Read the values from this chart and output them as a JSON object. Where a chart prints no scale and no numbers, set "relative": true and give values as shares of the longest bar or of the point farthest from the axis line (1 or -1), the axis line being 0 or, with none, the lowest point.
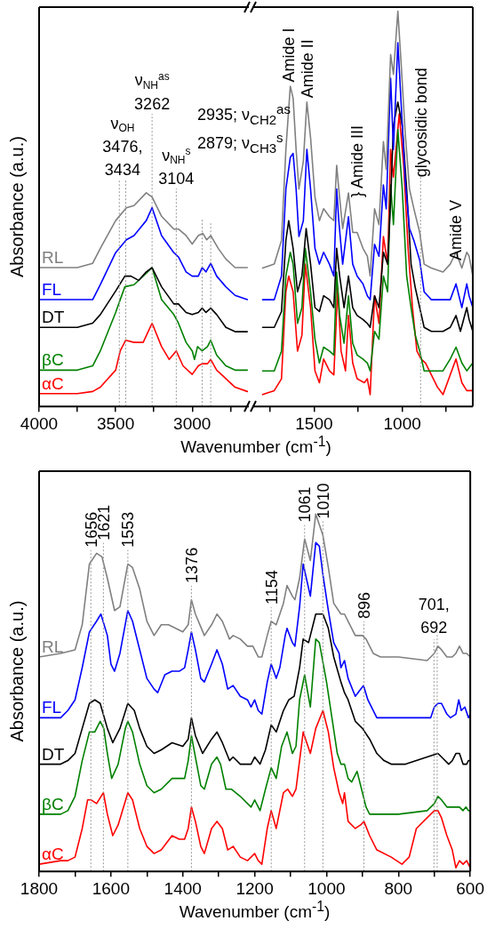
{
  "chart_data": [
    {
      "type": "line",
      "relative": true,
      "ylabel": "Absorbance (a.u.)",
      "xlim": [
        4000,
        2630
      ],
      "xticks": [
        4000,
        {
          "value": 3750,
          "label": null
        },
        3500,
        {
          "value": 3250,
          "label": null
        },
        3000,
        {
          "value": 2750,
          "label": null
        }
      ],
      "series": [
        {
          "name": "RL",
          "color": "#808080",
          "x": [
            4000,
            3750,
            3650,
            3600,
            3500,
            3430,
            3380,
            3300,
            3262,
            3200,
            3120,
            3090,
            3040,
            3000,
            2960,
            2930,
            2905,
            2879,
            2830,
            2780,
            2720,
            2640
          ],
          "values": [
            0.65,
            0.65,
            0.67,
            0.74,
            0.87,
            0.93,
            0.94,
            1.0,
            0.98,
            0.89,
            0.83,
            0.83,
            0.8,
            0.76,
            0.8,
            0.81,
            0.78,
            0.8,
            0.74,
            0.69,
            0.65,
            0.65
          ]
        },
        {
          "name": "FL",
          "color": "#0000ff",
          "x": [
            4000,
            3750,
            3650,
            3600,
            3500,
            3430,
            3380,
            3300,
            3262,
            3200,
            3120,
            3090,
            3040,
            3000,
            2960,
            2935,
            2910,
            2879,
            2840,
            2780,
            2720,
            2640
          ],
          "values": [
            0.5,
            0.5,
            0.5,
            0.57,
            0.72,
            0.78,
            0.8,
            0.87,
            0.93,
            0.8,
            0.72,
            0.7,
            0.63,
            0.61,
            0.61,
            0.65,
            0.63,
            0.67,
            0.61,
            0.56,
            0.52,
            0.5
          ]
        },
        {
          "name": "DT",
          "color": "#000000",
          "x": [
            4000,
            3750,
            3650,
            3600,
            3500,
            3440,
            3400,
            3350,
            3300,
            3262,
            3200,
            3120,
            3090,
            3040,
            3000,
            2960,
            2935,
            2910,
            2879,
            2840,
            2780,
            2720,
            2640
          ],
          "values": [
            0.37,
            0.37,
            0.39,
            0.43,
            0.54,
            0.61,
            0.61,
            0.59,
            0.63,
            0.65,
            0.56,
            0.48,
            0.48,
            0.44,
            0.43,
            0.44,
            0.46,
            0.44,
            0.46,
            0.43,
            0.37,
            0.35,
            0.35
          ]
        },
        {
          "name": "βC",
          "color": "#008000",
          "x": [
            4000,
            3750,
            3650,
            3600,
            3500,
            3440,
            3380,
            3320,
            3262,
            3200,
            3120,
            3090,
            3040,
            3000,
            2985,
            2965,
            2935,
            2900,
            2879,
            2840,
            2780,
            2720,
            2640
          ],
          "values": [
            0.17,
            0.17,
            0.19,
            0.26,
            0.44,
            0.56,
            0.57,
            0.61,
            0.65,
            0.5,
            0.43,
            0.39,
            0.3,
            0.26,
            0.22,
            0.28,
            0.26,
            0.28,
            0.31,
            0.24,
            0.19,
            0.17,
            0.17
          ]
        },
        {
          "name": "αC",
          "color": "#ff0000",
          "x": [
            4000,
            3750,
            3650,
            3600,
            3500,
            3470,
            3434,
            3380,
            3320,
            3262,
            3200,
            3150,
            3104,
            3060,
            3000,
            2960,
            2935,
            2900,
            2879,
            2840,
            2780,
            2720,
            2640
          ],
          "values": [
            0.06,
            0.06,
            0.07,
            0.09,
            0.17,
            0.26,
            0.31,
            0.3,
            0.3,
            0.39,
            0.28,
            0.22,
            0.26,
            0.19,
            0.15,
            0.19,
            0.2,
            0.2,
            0.22,
            0.17,
            0.13,
            0.09,
            0.07
          ]
        }
      ],
      "ref_lines": [
        {
          "axis": "x",
          "value": 3476,
          "color": "#999999",
          "line_style": "dotted"
        },
        {
          "axis": "x",
          "value": 3434,
          "color": "#999999",
          "line_style": "dotted"
        },
        {
          "axis": "x",
          "value": 3262,
          "color": "#999999",
          "line_style": "dotted"
        },
        {
          "axis": "x",
          "value": 3104,
          "color": "#999999",
          "line_style": "dotted"
        },
        {
          "axis": "x",
          "value": 2935,
          "color": "#999999",
          "line_style": "dotted"
        },
        {
          "axis": "x",
          "value": 2879,
          "color": "#999999",
          "line_style": "dotted"
        }
      ],
      "annotations": [
        {
          "text": "ν$_{OH}$\n3476,\n3434",
          "x": 3455,
          "y": 1.06
        },
        {
          "text": "ν$_{NH}$$^{as}$\n3262",
          "x": 3262,
          "y": 1.37
        },
        {
          "text": "ν$_{NH}$$^{s}$\n3104",
          "x": 3104,
          "y": 1.02
        },
        "2935; ν$_{CH2}$$^{as}$",
        "2879; ν$_{CH3}$$^{s}$"
      ]
    },
    {
      "type": "line",
      "relative": true,
      "xlabel": "Wavenumber (cm$^{-1}$)",
      "xlim": [
        1850,
        600
      ],
      "xticks": [
        {
          "value": 1750,
          "label": null
        },
        1500,
        {
          "value": 1250,
          "label": null
        },
        1000,
        {
          "value": 750,
          "label": null
        }
      ],
      "series": [
        {
          "color": "#808080",
          "x": [
            1792,
            1726,
            1685,
            1660,
            1635,
            1619,
            1602,
            1586,
            1561,
            1541,
            1520,
            1495,
            1470,
            1446,
            1413,
            1388,
            1372,
            1360,
            1338,
            1305,
            1281,
            1256,
            1223,
            1198,
            1182,
            1157,
            1132,
            1107,
            1091,
            1066,
            1050,
            1025,
            1008,
            983,
            959,
            934,
            901,
            876,
            835,
            769,
            728,
            695,
            662,
            634,
            621,
            600
          ],
          "values": [
            0.35,
            0.36,
            0.42,
            0.65,
            0.81,
            0.78,
            0.65,
            0.55,
            0.62,
            0.77,
            0.68,
            0.53,
            0.47,
            0.5,
            0.48,
            0.47,
            0.61,
            0.55,
            0.45,
            0.54,
            0.44,
            0.44,
            0.4,
            0.38,
            0.33,
            0.5,
            0.46,
            0.67,
            0.6,
            0.89,
            0.84,
            1.0,
            0.88,
            0.69,
            0.55,
            0.5,
            0.44,
            0.36,
            0.35,
            0.34,
            0.36,
            0.39,
            0.35,
            0.39,
            0.38,
            0.33
          ]
        },
        {
          "color": "#0000ff",
          "x": [
            1792,
            1726,
            1685,
            1660,
            1635,
            1619,
            1602,
            1586,
            1561,
            1541,
            1520,
            1495,
            1470,
            1446,
            1413,
            1388,
            1372,
            1360,
            1338,
            1305,
            1281,
            1256,
            1223,
            1198,
            1182,
            1157,
            1132,
            1107,
            1091,
            1066,
            1050,
            1025,
            1008,
            983,
            959,
            934,
            901,
            876,
            835,
            769,
            728,
            695,
            662,
            634,
            621,
            600
          ],
          "values": [
            0.27,
            0.27,
            0.33,
            0.55,
            0.63,
            0.64,
            0.55,
            0.43,
            0.47,
            0.65,
            0.55,
            0.4,
            0.36,
            0.39,
            0.36,
            0.33,
            0.55,
            0.47,
            0.36,
            0.48,
            0.36,
            0.33,
            0.31,
            0.28,
            0.27,
            0.41,
            0.38,
            0.56,
            0.5,
            0.83,
            0.65,
            0.92,
            0.78,
            0.57,
            0.45,
            0.42,
            0.37,
            0.29,
            0.27,
            0.27,
            0.27,
            0.31,
            0.25,
            0.31,
            0.28,
            0.25
          ]
        },
        {
          "color": "#000000",
          "x": [
            1792,
            1726,
            1685,
            1660,
            1644,
            1619,
            1594,
            1569,
            1545,
            1520,
            1495,
            1470,
            1446,
            1413,
            1388,
            1372,
            1355,
            1330,
            1305,
            1281,
            1256,
            1223,
            1198,
            1182,
            1157,
            1132,
            1107,
            1083,
            1066,
            1050,
            1025,
            1000,
            975,
            950,
            926,
            901,
            876,
            835,
            769,
            728,
            695,
            670,
            634,
            621,
            600
          ],
          "values": [
            0.2,
            0.2,
            0.24,
            0.42,
            0.47,
            0.4,
            0.29,
            0.33,
            0.45,
            0.36,
            0.25,
            0.24,
            0.28,
            0.27,
            0.25,
            0.4,
            0.33,
            0.25,
            0.33,
            0.25,
            0.23,
            0.22,
            0.21,
            0.2,
            0.28,
            0.25,
            0.39,
            0.36,
            0.52,
            0.71,
            0.77,
            0.71,
            0.55,
            0.36,
            0.3,
            0.25,
            0.2,
            0.19,
            0.19,
            0.2,
            0.23,
            0.19,
            0.25,
            0.22,
            0.19
          ]
        },
        {
          "color": "#008000",
          "x": [
            1792,
            1726,
            1685,
            1660,
            1635,
            1619,
            1594,
            1569,
            1550,
            1520,
            1495,
            1470,
            1446,
            1413,
            1388,
            1372,
            1355,
            1330,
            1305,
            1281,
            1256,
            1223,
            1198,
            1182,
            1157,
            1132,
            1107,
            1083,
            1066,
            1050,
            1025,
            1000,
            975,
            950,
            926,
            901,
            876,
            835,
            769,
            728,
            695,
            662,
            634,
            600
          ],
          "values": [
            0.09,
            0.09,
            0.14,
            0.33,
            0.39,
            0.36,
            0.21,
            0.25,
            0.4,
            0.29,
            0.17,
            0.11,
            0.15,
            0.14,
            0.13,
            0.34,
            0.23,
            0.16,
            0.28,
            0.16,
            0.13,
            0.12,
            0.11,
            0.09,
            0.19,
            0.17,
            0.33,
            0.29,
            0.56,
            0.46,
            0.7,
            0.55,
            0.33,
            0.25,
            0.18,
            0.14,
            0.09,
            0.09,
            0.09,
            0.12,
            0.15,
            0.11,
            0.09,
            0.11
          ]
        },
        {
          "color": "#ff0000",
          "x": [
            1792,
            1726,
            1685,
            1660,
            1644,
            1619,
            1594,
            1569,
            1550,
            1520,
            1495,
            1470,
            1446,
            1413,
            1388,
            1366,
            1347,
            1322,
            1305,
            1281,
            1256,
            1215,
            1198,
            1182,
            1157,
            1132,
            1107,
            1083,
            1066,
            1050,
            1017,
            992,
            967,
            942,
            917,
            893,
            868,
            835,
            802,
            769,
            736,
            695,
            662,
            634,
            600
          ],
          "values": [
            0.03,
            0.04,
            0.07,
            0.29,
            0.33,
            0.29,
            0.14,
            0.18,
            0.36,
            0.25,
            0.09,
            0.06,
            0.12,
            0.09,
            0.08,
            0.3,
            0.14,
            0.09,
            0.23,
            0.11,
            0.07,
            0.06,
            0.07,
            0.03,
            0.28,
            0.21,
            0.43,
            0.36,
            0.65,
            0.58,
            0.74,
            0.61,
            0.4,
            0.25,
            0.14,
            0.12,
            0.11,
            0.08,
            0.05,
            0.03,
            0.07,
            0.12,
            0.06,
            0.04,
            0.04
          ]
        }
      ],
      "ref_lines": [
        {
          "axis": "x",
          "value": 896,
          "color": "#999999",
          "line_style": "dotted"
        }
      ],
      "annotations": [
        {
          "text": "Amide I",
          "x": 1644,
          "y": 0.82
        },
        {
          "text": "Amide II",
          "x": 1541,
          "y": 0.78
        },
        "} Amide III",
        {
          "text": "glycosidic bond",
          "x": 893,
          "y": 0.58
        },
        "Amide V"
      ]
    },
    {
      "type": "line",
      "relative": true,
      "ylabel": "Absorbance (a.u.)",
      "xlabel": "Wavenumber (cm$^{-1}$)",
      "xlim": [
        1800,
        600
      ],
      "xticks": [
        1800,
        {
          "value": 1700,
          "label": null
        },
        1600,
        {
          "value": 1500,
          "label": null
        },
        1400,
        {
          "value": 1300,
          "label": null
        },
        1200,
        {
          "value": 1100,
          "label": null
        },
        1000,
        {
          "value": 900,
          "label": null
        },
        800,
        {
          "value": 700,
          "label": null
        },
        600
      ],
      "series": [
        {
          "name": "RL",
          "color": "#808080",
          "x": [
            1800,
            1740,
            1700,
            1680,
            1660,
            1640,
            1625,
            1610,
            1590,
            1575,
            1553,
            1540,
            1520,
            1500,
            1480,
            1460,
            1440,
            1420,
            1400,
            1385,
            1376,
            1365,
            1340,
            1320,
            1305,
            1290,
            1270,
            1260,
            1240,
            1220,
            1205,
            1190,
            1180,
            1165,
            1154,
            1140,
            1120,
            1110,
            1095,
            1088,
            1075,
            1061,
            1045,
            1030,
            1010,
            995,
            980,
            960,
            950,
            940,
            920,
            900,
            890,
            870,
            850,
            800,
            720,
            700,
            690,
            680,
            665,
            650,
            640,
            630,
            620,
            610,
            600
          ],
          "values": [
            0.6,
            0.61,
            0.62,
            0.69,
            0.86,
            0.89,
            0.88,
            0.82,
            0.73,
            0.74,
            0.86,
            0.85,
            0.79,
            0.7,
            0.66,
            0.69,
            0.69,
            0.68,
            0.67,
            0.69,
            0.76,
            0.72,
            0.66,
            0.69,
            0.72,
            0.7,
            0.65,
            0.66,
            0.65,
            0.63,
            0.63,
            0.6,
            0.6,
            0.66,
            0.7,
            0.69,
            0.75,
            0.8,
            0.77,
            0.76,
            0.82,
            0.93,
            0.87,
            1.0,
            0.94,
            0.85,
            0.75,
            0.72,
            0.72,
            0.7,
            0.66,
            0.66,
            0.65,
            0.61,
            0.6,
            0.6,
            0.59,
            0.61,
            0.63,
            0.62,
            0.6,
            0.6,
            0.61,
            0.63,
            0.61,
            0.61,
            0.6
          ]
        },
        {
          "name": "FL",
          "color": "#0000ff",
          "x": [
            1800,
            1740,
            1720,
            1700,
            1680,
            1660,
            1640,
            1628,
            1610,
            1600,
            1590,
            1575,
            1553,
            1540,
            1520,
            1500,
            1480,
            1470,
            1450,
            1430,
            1410,
            1395,
            1385,
            1376,
            1365,
            1350,
            1340,
            1320,
            1305,
            1290,
            1275,
            1260,
            1240,
            1220,
            1210,
            1200,
            1190,
            1180,
            1165,
            1154,
            1140,
            1130,
            1115,
            1110,
            1095,
            1088,
            1075,
            1065,
            1045,
            1030,
            1020,
            1010,
            995,
            980,
            965,
            960,
            950,
            940,
            920,
            905,
            897,
            885,
            860,
            800,
            710,
            700,
            690,
            680,
            665,
            655,
            640,
            632,
            625,
            615,
            605,
            600
          ],
          "values": [
            0.43,
            0.43,
            0.45,
            0.48,
            0.57,
            0.67,
            0.7,
            0.72,
            0.66,
            0.58,
            0.56,
            0.61,
            0.73,
            0.7,
            0.62,
            0.54,
            0.51,
            0.5,
            0.55,
            0.56,
            0.56,
            0.57,
            0.62,
            0.67,
            0.62,
            0.54,
            0.53,
            0.58,
            0.62,
            0.58,
            0.51,
            0.52,
            0.49,
            0.48,
            0.46,
            0.48,
            0.45,
            0.44,
            0.53,
            0.58,
            0.54,
            0.57,
            0.66,
            0.68,
            0.64,
            0.63,
            0.74,
            0.86,
            0.77,
            0.92,
            0.91,
            0.83,
            0.73,
            0.64,
            0.61,
            0.57,
            0.59,
            0.54,
            0.49,
            0.51,
            0.52,
            0.48,
            0.43,
            0.43,
            0.43,
            0.46,
            0.47,
            0.47,
            0.44,
            0.43,
            0.44,
            0.48,
            0.45,
            0.46,
            0.43,
            0.44
          ]
        },
        {
          "name": "DT",
          "color": "#000000",
          "x": [
            1800,
            1740,
            1720,
            1700,
            1680,
            1660,
            1645,
            1630,
            1610,
            1595,
            1575,
            1553,
            1535,
            1520,
            1500,
            1480,
            1460,
            1430,
            1400,
            1385,
            1376,
            1365,
            1345,
            1320,
            1305,
            1290,
            1270,
            1260,
            1240,
            1210,
            1200,
            1185,
            1170,
            1154,
            1140,
            1120,
            1105,
            1090,
            1075,
            1065,
            1050,
            1030,
            1010,
            995,
            980,
            960,
            950,
            940,
            920,
            900,
            880,
            860,
            840,
            820,
            800,
            780,
            720,
            690,
            680,
            660,
            650,
            640,
            630,
            620,
            610,
            605,
            600
          ],
          "values": [
            0.3,
            0.3,
            0.31,
            0.33,
            0.4,
            0.47,
            0.48,
            0.47,
            0.4,
            0.36,
            0.4,
            0.47,
            0.45,
            0.4,
            0.35,
            0.33,
            0.34,
            0.36,
            0.35,
            0.37,
            0.43,
            0.38,
            0.33,
            0.37,
            0.39,
            0.36,
            0.31,
            0.32,
            0.3,
            0.3,
            0.32,
            0.3,
            0.34,
            0.41,
            0.39,
            0.45,
            0.48,
            0.49,
            0.57,
            0.65,
            0.64,
            0.72,
            0.72,
            0.68,
            0.6,
            0.53,
            0.5,
            0.48,
            0.42,
            0.4,
            0.37,
            0.33,
            0.31,
            0.3,
            0.3,
            0.3,
            0.32,
            0.33,
            0.32,
            0.3,
            0.31,
            0.33,
            0.33,
            0.3,
            0.3,
            0.31,
            0.31
          ]
        },
        {
          "name": "βC",
          "color": "#008000",
          "x": [
            1800,
            1740,
            1720,
            1700,
            1680,
            1660,
            1645,
            1630,
            1620,
            1610,
            1598,
            1580,
            1560,
            1553,
            1540,
            1520,
            1500,
            1480,
            1460,
            1430,
            1410,
            1395,
            1385,
            1376,
            1365,
            1350,
            1340,
            1320,
            1305,
            1295,
            1280,
            1265,
            1240,
            1220,
            1210,
            1200,
            1185,
            1170,
            1154,
            1140,
            1125,
            1110,
            1095,
            1085,
            1075,
            1061,
            1045,
            1030,
            1020,
            1000,
            985,
            970,
            960,
            950,
            940,
            930,
            915,
            905,
            890,
            880,
            800,
            720,
            700,
            690,
            680,
            665,
            650,
            630,
            620,
            612,
            605,
            600
          ],
          "values": [
            0.16,
            0.16,
            0.17,
            0.21,
            0.31,
            0.39,
            0.39,
            0.42,
            0.4,
            0.33,
            0.26,
            0.3,
            0.4,
            0.42,
            0.39,
            0.3,
            0.24,
            0.22,
            0.23,
            0.26,
            0.26,
            0.26,
            0.31,
            0.38,
            0.32,
            0.24,
            0.23,
            0.3,
            0.32,
            0.3,
            0.23,
            0.23,
            0.21,
            0.19,
            0.18,
            0.2,
            0.17,
            0.23,
            0.29,
            0.26,
            0.35,
            0.39,
            0.33,
            0.35,
            0.48,
            0.55,
            0.46,
            0.65,
            0.64,
            0.53,
            0.43,
            0.33,
            0.3,
            0.3,
            0.26,
            0.25,
            0.28,
            0.24,
            0.18,
            0.16,
            0.16,
            0.17,
            0.19,
            0.21,
            0.2,
            0.18,
            0.18,
            0.18,
            0.17,
            0.18,
            0.17,
            0.17
          ]
        },
        {
          "name": "αC",
          "color": "#ff0000",
          "x": [
            1800,
            1740,
            1720,
            1700,
            1680,
            1665,
            1655,
            1640,
            1621,
            1610,
            1595,
            1580,
            1553,
            1540,
            1520,
            1500,
            1480,
            1460,
            1430,
            1410,
            1395,
            1385,
            1376,
            1365,
            1350,
            1340,
            1320,
            1305,
            1290,
            1275,
            1260,
            1240,
            1220,
            1210,
            1200,
            1190,
            1180,
            1165,
            1154,
            1140,
            1120,
            1108,
            1095,
            1085,
            1065,
            1045,
            1030,
            1010,
            995,
            980,
            965,
            955,
            950,
            940,
            920,
            905,
            896,
            880,
            860,
            820,
            790,
            770,
            750,
            730,
            700,
            690,
            680,
            665,
            650,
            640,
            630,
            620,
            610,
            600
          ],
          "values": [
            0.02,
            0.03,
            0.03,
            0.04,
            0.12,
            0.2,
            0.2,
            0.19,
            0.22,
            0.16,
            0.1,
            0.13,
            0.22,
            0.2,
            0.12,
            0.07,
            0.05,
            0.06,
            0.1,
            0.09,
            0.09,
            0.12,
            0.18,
            0.14,
            0.07,
            0.05,
            0.12,
            0.14,
            0.12,
            0.06,
            0.07,
            0.04,
            0.03,
            0.04,
            0.05,
            0.03,
            0.02,
            0.12,
            0.17,
            0.12,
            0.22,
            0.23,
            0.21,
            0.23,
            0.39,
            0.33,
            0.4,
            0.45,
            0.39,
            0.29,
            0.22,
            0.19,
            0.22,
            0.14,
            0.12,
            0.13,
            0.14,
            0.1,
            0.06,
            0.04,
            0.02,
            0.04,
            0.12,
            0.14,
            0.17,
            0.17,
            0.15,
            0.1,
            0.06,
            0.01,
            0.03,
            0.02,
            0.03,
            0.01
          ]
        }
      ],
      "ref_lines": [
        {
          "axis": "x",
          "value": 1656,
          "label": "1656",
          "color": "#999999",
          "line_style": "dotted"
        },
        {
          "axis": "x",
          "value": 1621,
          "label": "1621",
          "color": "#999999",
          "line_style": "dotted"
        },
        {
          "axis": "x",
          "value": 1553,
          "label": "1553",
          "color": "#999999",
          "line_style": "dotted"
        },
        {
          "axis": "x",
          "value": 1376,
          "label": "1376",
          "color": "#999999",
          "line_style": "dotted"
        },
        {
          "axis": "x",
          "value": 1154,
          "label": "1154",
          "color": "#999999",
          "line_style": "dotted"
        },
        {
          "axis": "x",
          "value": 1061,
          "label": "1061",
          "color": "#999999",
          "line_style": "dotted"
        },
        {
          "axis": "x",
          "value": 1010,
          "label": "1010",
          "color": "#999999",
          "line_style": "dotted"
        },
        {
          "axis": "x",
          "value": 896,
          "label": "896",
          "color": "#999999",
          "line_style": "dotted"
        },
        {
          "axis": "x",
          "value": 701,
          "label": "701,\n692",
          "color": "#999999",
          "line_style": "dotted"
        },
        {
          "axis": "x",
          "value": 692,
          "color": "#999999",
          "line_style": "dotted"
        }
      ]
    }
  ]
}
